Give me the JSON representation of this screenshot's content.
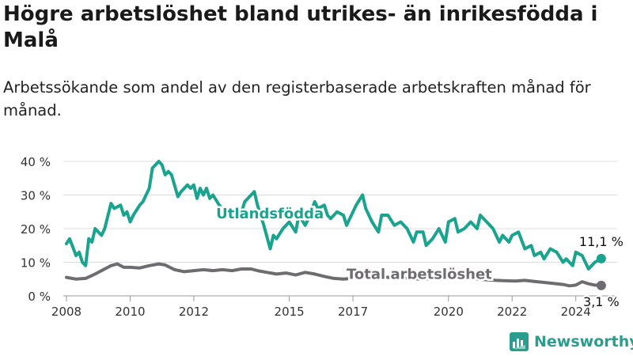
{
  "title": "Högre arbetslöshet bland utrikes- än inrikesfödda i Malå",
  "subtitle": "Arbetssökande som andel av den registerbaserade arbetskraften månad för månad.",
  "brand": {
    "name": "Newsworthy",
    "color": "#2a9d8f",
    "icon": "newsworthy-logo-icon"
  },
  "chart_data": {
    "type": "line",
    "ylim": [
      0,
      40
    ],
    "xlim": [
      2007.9,
      2025.3
    ],
    "y_ticks": [
      0,
      10,
      20,
      30,
      40
    ],
    "y_tick_labels": [
      "0 %",
      "10 %",
      "20 %",
      "30 %",
      "40 %"
    ],
    "x_ticks": [
      2008,
      2010,
      2012,
      2015,
      2017,
      2020,
      2022,
      2024
    ],
    "x_tick_labels": [
      "2008",
      "2010",
      "2012",
      "2015",
      "2017",
      "2020",
      "2022",
      "2024"
    ],
    "grid": true,
    "series": [
      {
        "name": "Utlandsfödda",
        "color": "#1aa38e",
        "end_label": "11,1 %",
        "points": [
          [
            2008.0,
            15.5
          ],
          [
            2008.1,
            17
          ],
          [
            2008.3,
            12
          ],
          [
            2008.4,
            13
          ],
          [
            2008.5,
            10
          ],
          [
            2008.6,
            9
          ],
          [
            2008.7,
            17
          ],
          [
            2008.8,
            16
          ],
          [
            2008.9,
            20
          ],
          [
            2009.0,
            19
          ],
          [
            2009.1,
            18
          ],
          [
            2009.2,
            20
          ],
          [
            2009.4,
            27.5
          ],
          [
            2009.5,
            26
          ],
          [
            2009.7,
            27
          ],
          [
            2009.8,
            24
          ],
          [
            2009.9,
            25
          ],
          [
            2010.0,
            22
          ],
          [
            2010.1,
            24
          ],
          [
            2010.3,
            27
          ],
          [
            2010.4,
            28
          ],
          [
            2010.6,
            32
          ],
          [
            2010.7,
            38
          ],
          [
            2010.9,
            40
          ],
          [
            2011.0,
            39
          ],
          [
            2011.1,
            36
          ],
          [
            2011.2,
            37
          ],
          [
            2011.3,
            36
          ],
          [
            2011.5,
            29.5
          ],
          [
            2011.6,
            31
          ],
          [
            2011.8,
            33
          ],
          [
            2011.9,
            32
          ],
          [
            2012.0,
            33
          ],
          [
            2012.1,
            29
          ],
          [
            2012.2,
            32
          ],
          [
            2012.3,
            30
          ],
          [
            2012.4,
            32
          ],
          [
            2012.5,
            29
          ],
          [
            2012.6,
            30
          ],
          [
            2012.8,
            27
          ],
          [
            2013.0,
            25
          ],
          [
            2013.2,
            26
          ],
          [
            2013.3,
            24
          ],
          [
            2013.5,
            25
          ],
          [
            2013.6,
            28
          ],
          [
            2013.7,
            29
          ],
          [
            2013.9,
            31
          ],
          [
            2014.0,
            27
          ],
          [
            2014.1,
            24
          ],
          [
            2014.2,
            21
          ],
          [
            2014.4,
            14
          ],
          [
            2014.5,
            18
          ],
          [
            2014.6,
            17
          ],
          [
            2014.8,
            20
          ],
          [
            2014.9,
            21
          ],
          [
            2015.0,
            22
          ],
          [
            2015.2,
            19
          ],
          [
            2015.3,
            24
          ],
          [
            2015.5,
            21
          ],
          [
            2015.6,
            23
          ],
          [
            2015.8,
            28
          ],
          [
            2015.9,
            26
          ],
          [
            2016.1,
            27
          ],
          [
            2016.2,
            24
          ],
          [
            2016.3,
            23
          ],
          [
            2016.5,
            25
          ],
          [
            2016.7,
            24
          ],
          [
            2016.8,
            21
          ],
          [
            2017.0,
            25
          ],
          [
            2017.1,
            27
          ],
          [
            2017.3,
            30
          ],
          [
            2017.4,
            26
          ],
          [
            2017.6,
            22
          ],
          [
            2017.8,
            19
          ],
          [
            2017.9,
            24
          ],
          [
            2018.1,
            24
          ],
          [
            2018.3,
            21
          ],
          [
            2018.5,
            22
          ],
          [
            2018.7,
            20
          ],
          [
            2018.9,
            16
          ],
          [
            2019.0,
            19
          ],
          [
            2019.2,
            19
          ],
          [
            2019.3,
            15
          ],
          [
            2019.5,
            17
          ],
          [
            2019.7,
            20
          ],
          [
            2019.9,
            16
          ],
          [
            2020.0,
            22
          ],
          [
            2020.2,
            23
          ],
          [
            2020.3,
            19
          ],
          [
            2020.5,
            20
          ],
          [
            2020.7,
            22
          ],
          [
            2020.9,
            20
          ],
          [
            2021.0,
            24
          ],
          [
            2021.2,
            22
          ],
          [
            2021.4,
            20
          ],
          [
            2021.6,
            16
          ],
          [
            2021.7,
            18
          ],
          [
            2021.9,
            16
          ],
          [
            2022.0,
            18
          ],
          [
            2022.2,
            19
          ],
          [
            2022.4,
            14
          ],
          [
            2022.6,
            15
          ],
          [
            2022.7,
            12
          ],
          [
            2022.9,
            13
          ],
          [
            2023.0,
            11
          ],
          [
            2023.2,
            14
          ],
          [
            2023.4,
            13
          ],
          [
            2023.6,
            10
          ],
          [
            2023.7,
            11
          ],
          [
            2023.9,
            9
          ],
          [
            2024.0,
            13
          ],
          [
            2024.2,
            12
          ],
          [
            2024.4,
            8
          ],
          [
            2024.6,
            10
          ],
          [
            2024.8,
            11.1
          ]
        ]
      },
      {
        "name": "Total arbetslöshet",
        "color": "#6e6c70",
        "end_label": "3,1 %",
        "points": [
          [
            2008.0,
            5.5
          ],
          [
            2008.3,
            5.0
          ],
          [
            2008.6,
            5.2
          ],
          [
            2008.9,
            6.5
          ],
          [
            2009.2,
            8.0
          ],
          [
            2009.4,
            9.0
          ],
          [
            2009.6,
            9.5
          ],
          [
            2009.8,
            8.5
          ],
          [
            2010.0,
            8.5
          ],
          [
            2010.3,
            8.3
          ],
          [
            2010.6,
            9.0
          ],
          [
            2010.9,
            9.5
          ],
          [
            2011.1,
            9.2
          ],
          [
            2011.4,
            7.8
          ],
          [
            2011.7,
            7.2
          ],
          [
            2012.0,
            7.5
          ],
          [
            2012.3,
            7.8
          ],
          [
            2012.6,
            7.5
          ],
          [
            2012.9,
            7.8
          ],
          [
            2013.2,
            7.5
          ],
          [
            2013.5,
            8.0
          ],
          [
            2013.8,
            8.0
          ],
          [
            2014.0,
            7.5
          ],
          [
            2014.3,
            7.0
          ],
          [
            2014.6,
            6.5
          ],
          [
            2014.9,
            6.8
          ],
          [
            2015.2,
            6.2
          ],
          [
            2015.5,
            7.0
          ],
          [
            2015.8,
            6.5
          ],
          [
            2016.1,
            5.8
          ],
          [
            2016.4,
            5.2
          ],
          [
            2016.7,
            5.0
          ],
          [
            2017.0,
            5.2
          ],
          [
            2017.3,
            5.4
          ],
          [
            2017.6,
            5.6
          ],
          [
            2017.9,
            5.6
          ],
          [
            2018.2,
            5.5
          ],
          [
            2018.5,
            5.3
          ],
          [
            2018.8,
            5.2
          ],
          [
            2019.1,
            5.0
          ],
          [
            2019.4,
            5.1
          ],
          [
            2019.7,
            5.0
          ],
          [
            2020.0,
            5.3
          ],
          [
            2020.3,
            5.2
          ],
          [
            2020.6,
            5.0
          ],
          [
            2020.9,
            5.0
          ],
          [
            2021.2,
            4.8
          ],
          [
            2021.5,
            4.6
          ],
          [
            2021.8,
            4.5
          ],
          [
            2022.1,
            4.4
          ],
          [
            2022.4,
            4.6
          ],
          [
            2022.7,
            4.3
          ],
          [
            2023.0,
            4.0
          ],
          [
            2023.3,
            3.7
          ],
          [
            2023.6,
            3.4
          ],
          [
            2023.8,
            3.0
          ],
          [
            2024.0,
            3.2
          ],
          [
            2024.2,
            4.2
          ],
          [
            2024.4,
            3.6
          ],
          [
            2024.6,
            3.2
          ],
          [
            2024.8,
            3.1
          ]
        ]
      }
    ]
  }
}
